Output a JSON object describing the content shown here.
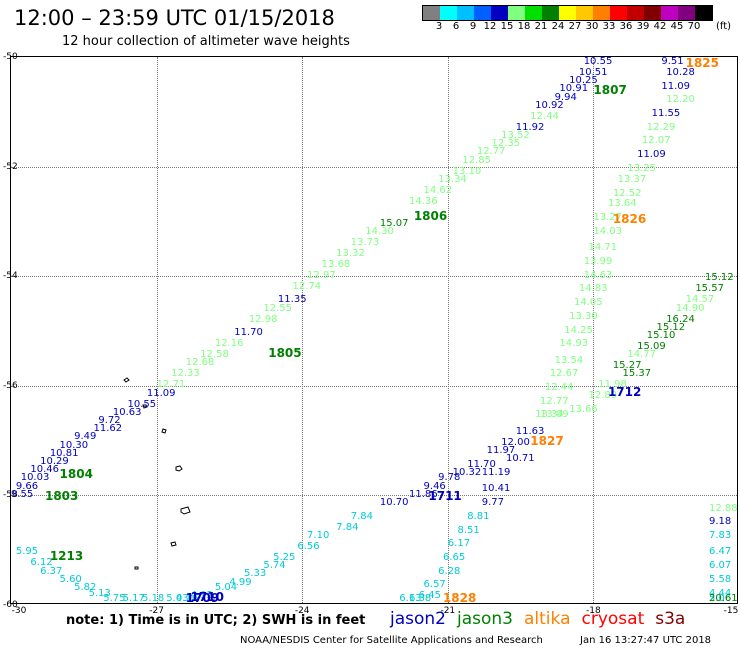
{
  "header": {
    "title": "12:00 – 23:59 UTC 01/15/2018",
    "subtitle": "12 hour collection of altimeter wave heights"
  },
  "colorbar": {
    "unit": "(ft)",
    "ticks": [
      "3",
      "6",
      "9",
      "12",
      "15",
      "18",
      "21",
      "24",
      "27",
      "30",
      "33",
      "36",
      "39",
      "42",
      "45",
      "70"
    ],
    "colors": [
      "#808080",
      "#00ffff",
      "#00bfff",
      "#0060ff",
      "#0000c0",
      "#80ff80",
      "#00e000",
      "#008000",
      "#ffff00",
      "#ffc800",
      "#ff8000",
      "#ff0000",
      "#c00000",
      "#800000",
      "#c000c0",
      "#800080",
      "#000000"
    ]
  },
  "axes": {
    "lat_labels": [
      "-50",
      "-52",
      "-54",
      "-56",
      "-58",
      "-60"
    ],
    "lon_labels": [
      "-30",
      "-27",
      "-24",
      "-21",
      "-18",
      "-15"
    ]
  },
  "note": "note:  1) Time is in UTC;  2) SWH is in feet",
  "legend": [
    {
      "name": "jason2",
      "color": "#0000c0"
    },
    {
      "name": "jason3",
      "color": "#008000"
    },
    {
      "name": "altika",
      "color": "#ff8000"
    },
    {
      "name": "cryosat",
      "color": "#ff0000"
    },
    {
      "name": "s3a",
      "color": "#800000"
    }
  ],
  "credit": "NOAA/NESDIS Center for Satellite Applications and Research",
  "credit_date": "Jan 16 13:27:47 UTC 2018",
  "colors": {
    "dark_blue": "#0000c0",
    "light_green": "#80ff80",
    "dark_green": "#008000",
    "cyan": "#00ccd8",
    "orange": "#ff8000"
  },
  "pass_labels": [
    {
      "text": "1825",
      "lon": -16.1,
      "lat": -50.0,
      "color": "orange"
    },
    {
      "text": "1807",
      "lon": -18.0,
      "lat": -50.5,
      "color": "dark_green"
    },
    {
      "text": "1826",
      "lon": -17.6,
      "lat": -52.85,
      "color": "orange"
    },
    {
      "text": "1806",
      "lon": -21.7,
      "lat": -52.8,
      "color": "dark_green"
    },
    {
      "text": "1805",
      "lon": -24.7,
      "lat": -55.3,
      "color": "dark_green"
    },
    {
      "text": "1712",
      "lon": -17.7,
      "lat": -56.0,
      "color": "dark_blue"
    },
    {
      "text": "1827",
      "lon": -19.3,
      "lat": -56.9,
      "color": "orange"
    },
    {
      "text": "1804",
      "lon": -29.0,
      "lat": -57.5,
      "color": "dark_green"
    },
    {
      "text": "1803",
      "lon": -29.3,
      "lat": -57.9,
      "color": "dark_green"
    },
    {
      "text": "1711",
      "lon": -21.4,
      "lat": -57.9,
      "color": "dark_blue"
    },
    {
      "text": "1213",
      "lon": -29.2,
      "lat": -59.0,
      "color": "dark_green"
    },
    {
      "text": "1710",
      "lon": -26.3,
      "lat": -59.75,
      "color": "dark_blue"
    },
    {
      "text": "1709",
      "lon": -26.4,
      "lat": -59.95,
      "color": "dark_blue"
    },
    {
      "text": "1828",
      "lon": -21.1,
      "lat": -59.95,
      "color": "orange"
    }
  ],
  "wave_heights": [
    {
      "v": "9.51",
      "lon": -16.6,
      "lat": -50.0,
      "color": "dark_blue"
    },
    {
      "v": "10.28",
      "lon": -16.5,
      "lat": -50.2,
      "color": "dark_blue"
    },
    {
      "v": "11.09",
      "lon": -16.6,
      "lat": -50.45,
      "color": "dark_blue"
    },
    {
      "v": "12.20",
      "lon": -16.5,
      "lat": -50.7,
      "color": "light_green"
    },
    {
      "v": "11.55",
      "lon": -16.8,
      "lat": -50.95,
      "color": "dark_blue"
    },
    {
      "v": "12.29",
      "lon": -16.9,
      "lat": -51.2,
      "color": "light_green"
    },
    {
      "v": "12.07",
      "lon": -17.0,
      "lat": -51.45,
      "color": "light_green"
    },
    {
      "v": "11.09",
      "lon": -17.1,
      "lat": -51.7,
      "color": "dark_blue"
    },
    {
      "v": "13.25",
      "lon": -17.3,
      "lat": -51.95,
      "color": "light_green"
    },
    {
      "v": "13.37",
      "lon": -17.5,
      "lat": -52.15,
      "color": "light_green"
    },
    {
      "v": "12.52",
      "lon": -17.6,
      "lat": -52.4,
      "color": "light_green"
    },
    {
      "v": "13.64",
      "lon": -17.7,
      "lat": -52.6,
      "color": "light_green"
    },
    {
      "v": "13.27",
      "lon": -18.0,
      "lat": -52.85,
      "color": "light_green"
    },
    {
      "v": "14.03",
      "lon": -18.0,
      "lat": -53.1,
      "color": "light_green"
    },
    {
      "v": "14.71",
      "lon": -18.1,
      "lat": -53.4,
      "color": "light_green"
    },
    {
      "v": "13.99",
      "lon": -18.2,
      "lat": -53.65,
      "color": "light_green"
    },
    {
      "v": "14.63",
      "lon": -18.2,
      "lat": -53.9,
      "color": "light_green"
    },
    {
      "v": "14.83",
      "lon": -18.3,
      "lat": -54.15,
      "color": "light_green"
    },
    {
      "v": "14.05",
      "lon": -18.4,
      "lat": -54.4,
      "color": "light_green"
    },
    {
      "v": "13.30",
      "lon": -18.5,
      "lat": -54.65,
      "color": "light_green"
    },
    {
      "v": "14.25",
      "lon": -18.6,
      "lat": -54.9,
      "color": "light_green"
    },
    {
      "v": "14.93",
      "lon": -18.7,
      "lat": -55.15,
      "color": "light_green"
    },
    {
      "v": "13.54",
      "lon": -18.8,
      "lat": -55.45,
      "color": "light_green"
    },
    {
      "v": "12.67",
      "lon": -18.9,
      "lat": -55.7,
      "color": "light_green"
    },
    {
      "v": "12.44",
      "lon": -19.0,
      "lat": -55.95,
      "color": "light_green"
    },
    {
      "v": "12.77",
      "lon": -19.1,
      "lat": -56.2,
      "color": "light_green"
    },
    {
      "v": "13.34",
      "lon": -19.2,
      "lat": -56.45,
      "color": "light_green"
    },
    {
      "v": "13.09",
      "lon": -19.1,
      "lat": -56.45,
      "color": "light_green"
    },
    {
      "v": "11.63",
      "lon": -19.6,
      "lat": -56.75,
      "color": "dark_blue"
    },
    {
      "v": "12.00",
      "lon": -19.9,
      "lat": -56.95,
      "color": "dark_blue"
    },
    {
      "v": "11.97",
      "lon": -20.2,
      "lat": -57.1,
      "color": "dark_blue"
    },
    {
      "v": "10.71",
      "lon": -19.8,
      "lat": -57.25,
      "color": "dark_blue"
    },
    {
      "v": "11.70",
      "lon": -20.6,
      "lat": -57.35,
      "color": "dark_blue"
    },
    {
      "v": "10.32",
      "lon": -20.9,
      "lat": -57.5,
      "color": "dark_blue"
    },
    {
      "v": "11.19",
      "lon": -20.3,
      "lat": -57.5,
      "color": "dark_blue"
    },
    {
      "v": "9.78",
      "lon": -21.2,
      "lat": -57.6,
      "color": "dark_blue"
    },
    {
      "v": "10.41",
      "lon": -20.3,
      "lat": -57.8,
      "color": "dark_blue"
    },
    {
      "v": "9.46",
      "lon": -21.5,
      "lat": -57.75,
      "color": "dark_blue"
    },
    {
      "v": "11.86",
      "lon": -21.8,
      "lat": -57.9,
      "color": "dark_blue"
    },
    {
      "v": "9.77",
      "lon": -20.3,
      "lat": -58.05,
      "color": "dark_blue"
    },
    {
      "v": "10.70",
      "lon": -22.4,
      "lat": -58.05,
      "color": "dark_blue"
    },
    {
      "v": "8.81",
      "lon": -20.6,
      "lat": -58.3,
      "color": "cyan"
    },
    {
      "v": "8.51",
      "lon": -20.8,
      "lat": -58.55,
      "color": "cyan"
    },
    {
      "v": "6.17",
      "lon": -21.0,
      "lat": -58.8,
      "color": "cyan"
    },
    {
      "v": "6.65",
      "lon": -21.1,
      "lat": -59.05,
      "color": "cyan"
    },
    {
      "v": "6.28",
      "lon": -21.2,
      "lat": -59.3,
      "color": "cyan"
    },
    {
      "v": "6.57",
      "lon": -21.5,
      "lat": -59.55,
      "color": "cyan"
    },
    {
      "v": "6.45",
      "lon": -21.6,
      "lat": -59.75,
      "color": "cyan"
    },
    {
      "v": "6.38",
      "lon": -21.8,
      "lat": -59.95,
      "color": "cyan"
    },
    {
      "v": "6.13",
      "lon": -22.0,
      "lat": -60.2,
      "color": "cyan"
    },
    {
      "v": "7.84",
      "lon": -23.0,
      "lat": -58.3,
      "color": "cyan"
    },
    {
      "v": "7.84",
      "lon": -23.3,
      "lat": -58.5,
      "color": "cyan"
    },
    {
      "v": "7.10",
      "lon": -23.9,
      "lat": -58.65,
      "color": "cyan"
    },
    {
      "v": "6.56",
      "lon": -24.1,
      "lat": -58.85,
      "color": "cyan"
    },
    {
      "v": "5.25",
      "lon": -24.6,
      "lat": -59.05,
      "color": "cyan"
    },
    {
      "v": "5.74",
      "lon": -24.8,
      "lat": -59.2,
      "color": "cyan"
    },
    {
      "v": "5.33",
      "lon": -25.2,
      "lat": -59.35,
      "color": "cyan"
    },
    {
      "v": "4.99",
      "lon": -25.5,
      "lat": -59.5,
      "color": "cyan"
    },
    {
      "v": "5.04",
      "lon": -25.8,
      "lat": -59.6,
      "color": "cyan"
    },
    {
      "v": "4.92",
      "lon": -26.3,
      "lat": -59.75,
      "color": "cyan"
    },
    {
      "v": "4.16",
      "lon": -26.6,
      "lat": -59.85,
      "color": "cyan"
    },
    {
      "v": "5.03",
      "lon": -26.8,
      "lat": -59.95,
      "color": "cyan"
    },
    {
      "v": "5.95",
      "lon": -29.9,
      "lat": -58.95,
      "color": "cyan"
    },
    {
      "v": "6.12",
      "lon": -29.6,
      "lat": -59.15,
      "color": "cyan"
    },
    {
      "v": "6.37",
      "lon": -29.4,
      "lat": -59.3,
      "color": "cyan"
    },
    {
      "v": "5.60",
      "lon": -29.0,
      "lat": -59.45,
      "color": "cyan"
    },
    {
      "v": "5.82",
      "lon": -28.7,
      "lat": -59.6,
      "color": "cyan"
    },
    {
      "v": "5.13",
      "lon": -28.4,
      "lat": -59.7,
      "color": "cyan"
    },
    {
      "v": "5.75",
      "lon": -28.1,
      "lat": -59.8,
      "color": "cyan"
    },
    {
      "v": "5.17",
      "lon": -27.7,
      "lat": -59.9,
      "color": "cyan"
    },
    {
      "v": "5.18",
      "lon": -27.3,
      "lat": -60.1,
      "color": "cyan"
    },
    {
      "v": "10.55",
      "lon": -18.2,
      "lat": -50.0,
      "color": "dark_blue"
    },
    {
      "v": "10.51",
      "lon": -18.3,
      "lat": -50.2,
      "color": "dark_blue"
    },
    {
      "v": "10.25",
      "lon": -18.5,
      "lat": -50.35,
      "color": "dark_blue"
    },
    {
      "v": "10.91",
      "lon": -18.7,
      "lat": -50.5,
      "color": "dark_blue"
    },
    {
      "v": "9.94",
      "lon": -18.8,
      "lat": -50.65,
      "color": "dark_blue"
    },
    {
      "v": "10.92",
      "lon": -19.2,
      "lat": -50.8,
      "color": "dark_blue"
    },
    {
      "v": "12.44",
      "lon": -19.3,
      "lat": -51.0,
      "color": "light_green"
    },
    {
      "v": "11.92",
      "lon": -19.6,
      "lat": -51.2,
      "color": "dark_blue"
    },
    {
      "v": "13.52",
      "lon": -19.9,
      "lat": -51.35,
      "color": "light_green"
    },
    {
      "v": "12.35",
      "lon": -20.1,
      "lat": -51.5,
      "color": "light_green"
    },
    {
      "v": "12.77",
      "lon": -20.4,
      "lat": -51.65,
      "color": "light_green"
    },
    {
      "v": "12.85",
      "lon": -20.7,
      "lat": -51.8,
      "color": "light_green"
    },
    {
      "v": "13.10",
      "lon": -20.9,
      "lat": -52.0,
      "color": "light_green"
    },
    {
      "v": "13.34",
      "lon": -21.2,
      "lat": -52.15,
      "color": "light_green"
    },
    {
      "v": "14.62",
      "lon": -21.5,
      "lat": -52.35,
      "color": "light_green"
    },
    {
      "v": "14.36",
      "lon": -21.8,
      "lat": -52.55,
      "color": "light_green"
    },
    {
      "v": "15.07",
      "lon": -22.4,
      "lat": -52.95,
      "color": "dark_green"
    },
    {
      "v": "14.30",
      "lon": -22.7,
      "lat": -53.1,
      "color": "light_green"
    },
    {
      "v": "13.73",
      "lon": -23.0,
      "lat": -53.3,
      "color": "light_green"
    },
    {
      "v": "13.32",
      "lon": -23.3,
      "lat": -53.5,
      "color": "light_green"
    },
    {
      "v": "13.68",
      "lon": -23.6,
      "lat": -53.7,
      "color": "light_green"
    },
    {
      "v": "12.97",
      "lon": -23.9,
      "lat": -53.9,
      "color": "light_green"
    },
    {
      "v": "12.74",
      "lon": -24.2,
      "lat": -54.1,
      "color": "light_green"
    },
    {
      "v": "11.35",
      "lon": -24.5,
      "lat": -54.35,
      "color": "dark_blue"
    },
    {
      "v": "12.55",
      "lon": -24.8,
      "lat": -54.5,
      "color": "light_green"
    },
    {
      "v": "12.98",
      "lon": -25.1,
      "lat": -54.7,
      "color": "light_green"
    },
    {
      "v": "11.70",
      "lon": -25.4,
      "lat": -54.95,
      "color": "dark_blue"
    },
    {
      "v": "12.16",
      "lon": -25.8,
      "lat": -55.15,
      "color": "light_green"
    },
    {
      "v": "12.58",
      "lon": -26.1,
      "lat": -55.35,
      "color": "light_green"
    },
    {
      "v": "12.68",
      "lon": -26.4,
      "lat": -55.5,
      "color": "light_green"
    },
    {
      "v": "12.33",
      "lon": -26.7,
      "lat": -55.7,
      "color": "light_green"
    },
    {
      "v": "12.71",
      "lon": -27.0,
      "lat": -55.9,
      "color": "light_green"
    },
    {
      "v": "11.09",
      "lon": -27.2,
      "lat": -56.05,
      "color": "dark_blue"
    },
    {
      "v": "10.55",
      "lon": -27.6,
      "lat": -56.25,
      "color": "dark_blue"
    },
    {
      "v": "10.63",
      "lon": -27.9,
      "lat": -56.4,
      "color": "dark_blue"
    },
    {
      "v": "9.72",
      "lon": -28.2,
      "lat": -56.55,
      "color": "dark_blue"
    },
    {
      "v": "11.62",
      "lon": -28.3,
      "lat": -56.7,
      "color": "dark_blue"
    },
    {
      "v": "9.49",
      "lon": -28.7,
      "lat": -56.85,
      "color": "dark_blue"
    },
    {
      "v": "10.30",
      "lon": -29.0,
      "lat": -57.0,
      "color": "dark_blue"
    },
    {
      "v": "10.81",
      "lon": -29.2,
      "lat": -57.15,
      "color": "dark_blue"
    },
    {
      "v": "10.29",
      "lon": -29.4,
      "lat": -57.3,
      "color": "dark_blue"
    },
    {
      "v": "10.46",
      "lon": -29.6,
      "lat": -57.45,
      "color": "dark_blue"
    },
    {
      "v": "10.03",
      "lon": -29.8,
      "lat": -57.6,
      "color": "dark_blue"
    },
    {
      "v": "9.66",
      "lon": -29.9,
      "lat": -57.75,
      "color": "dark_blue"
    },
    {
      "v": "9.55",
      "lon": -30.0,
      "lat": -57.9,
      "color": "dark_blue"
    },
    {
      "v": "15.12",
      "lon": -15.7,
      "lat": -53.95,
      "color": "dark_green"
    },
    {
      "v": "15.57",
      "lon": -15.9,
      "lat": -54.15,
      "color": "dark_green"
    },
    {
      "v": "14.57",
      "lon": -16.1,
      "lat": -54.35,
      "color": "light_green"
    },
    {
      "v": "14.90",
      "lon": -16.3,
      "lat": -54.5,
      "color": "light_green"
    },
    {
      "v": "16.24",
      "lon": -16.5,
      "lat": -54.7,
      "color": "dark_green"
    },
    {
      "v": "15.12",
      "lon": -16.7,
      "lat": -54.85,
      "color": "dark_green"
    },
    {
      "v": "15.10",
      "lon": -16.9,
      "lat": -55.0,
      "color": "dark_green"
    },
    {
      "v": "15.09",
      "lon": -17.1,
      "lat": -55.2,
      "color": "dark_green"
    },
    {
      "v": "14.77",
      "lon": -17.3,
      "lat": -55.35,
      "color": "light_green"
    },
    {
      "v": "15.27",
      "lon": -17.6,
      "lat": -55.55,
      "color": "dark_green"
    },
    {
      "v": "15.37",
      "lon": -17.4,
      "lat": -55.7,
      "color": "dark_green"
    },
    {
      "v": "11.98",
      "lon": -17.9,
      "lat": -55.9,
      "color": "light_green"
    },
    {
      "v": "12.89",
      "lon": -18.1,
      "lat": -56.1,
      "color": "light_green"
    },
    {
      "v": "13.66",
      "lon": -18.5,
      "lat": -56.35,
      "color": "light_green"
    },
    {
      "v": "9.18",
      "lon": -15.2,
      "lat": -58.4,
      "color": "dark_blue"
    },
    {
      "v": "7.83",
      "lon": -15.2,
      "lat": -58.65,
      "color": "cyan"
    },
    {
      "v": "6.47",
      "lon": -15.2,
      "lat": -58.95,
      "color": "cyan"
    },
    {
      "v": "6.07",
      "lon": -15.2,
      "lat": -59.2,
      "color": "cyan"
    },
    {
      "v": "5.58",
      "lon": -15.2,
      "lat": -59.45,
      "color": "cyan"
    },
    {
      "v": "4.44",
      "lon": -15.2,
      "lat": -59.7,
      "color": "cyan"
    },
    {
      "v": "5.06",
      "lon": -15.2,
      "lat": -59.95,
      "color": "cyan"
    },
    {
      "v": "20.61",
      "lon": -15.5,
      "lat": -60.2,
      "color": "dark_green"
    },
    {
      "v": "12.88",
      "lon": -15.1,
      "lat": -58.15,
      "color": "light_green"
    }
  ]
}
